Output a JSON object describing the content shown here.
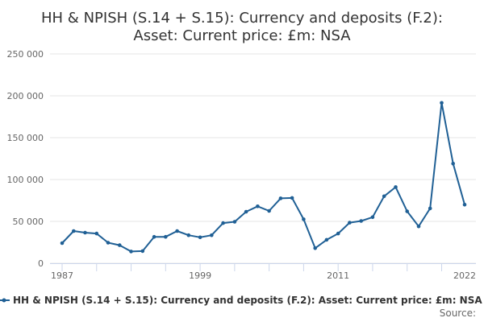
{
  "chart_data": {
    "type": "line",
    "title_line1": "HH & NPISH (S.14 + S.15): Currency and deposits (F.2):",
    "title_line2": "Asset: Current price: £m: NSA",
    "xlabel": "",
    "ylabel": "",
    "x_tick_labels": [
      "1987",
      "1999",
      "2011",
      "2022"
    ],
    "y_tick_labels": [
      "0",
      "50 000",
      "100 000",
      "150 000",
      "200 000",
      "250 000"
    ],
    "xlim": [
      1987,
      2022
    ],
    "ylim": [
      0,
      250000
    ],
    "grid": true,
    "legend_position": "bottom",
    "series": [
      {
        "name": "HH & NPISH (S.14 + S.15): Currency and deposits (F.2): Asset: Current price: £m: NSA",
        "color": "#206095",
        "x": [
          1987,
          1988,
          1989,
          1990,
          1991,
          1992,
          1993,
          1994,
          1995,
          1996,
          1997,
          1998,
          1999,
          2000,
          2001,
          2002,
          2003,
          2004,
          2005,
          2006,
          2007,
          2008,
          2009,
          2010,
          2011,
          2012,
          2013,
          2014,
          2015,
          2016,
          2017,
          2018,
          2019,
          2020,
          2021,
          2022
        ],
        "values": [
          24000,
          38500,
          36500,
          35500,
          24500,
          21500,
          14000,
          14500,
          31500,
          31500,
          38500,
          33500,
          31000,
          33500,
          48000,
          49500,
          61500,
          68000,
          62500,
          77500,
          78000,
          52500,
          18000,
          28000,
          35500,
          48500,
          50500,
          55000,
          80000,
          91000,
          62000,
          44000,
          65500,
          191500,
          119000,
          70000
        ]
      }
    ]
  },
  "legend": {
    "label": "HH & NPISH (S.14 + S.15): Currency and deposits (F.2): Asset: Current price: £m: NSA"
  },
  "source": {
    "label": "Source:"
  }
}
